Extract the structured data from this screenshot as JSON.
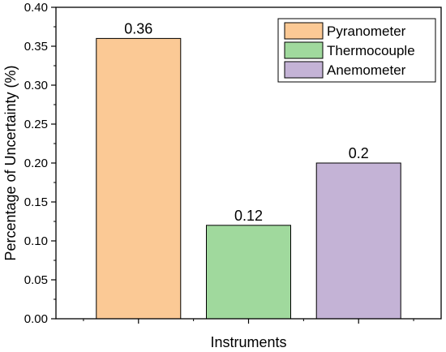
{
  "chart_data": {
    "type": "bar",
    "title": "",
    "xlabel": "Instruments",
    "ylabel": "Percentage of Uncertainty (%)",
    "ylim": [
      0,
      0.4
    ],
    "yticks": [
      "0.00",
      "0.05",
      "0.10",
      "0.15",
      "0.20",
      "0.25",
      "0.30",
      "0.35",
      "0.40"
    ],
    "legend_position": "top-right",
    "grid": false,
    "bars": [
      {
        "name": "Pyranometer",
        "value": 0.36,
        "label": "0.36",
        "color": "#fbc995"
      },
      {
        "name": "Thermocouple",
        "value": 0.12,
        "label": "0.12",
        "color": "#a0d99d"
      },
      {
        "name": "Anemometer",
        "value": 0.2,
        "label": "0.2",
        "color": "#c4b3d6"
      }
    ]
  }
}
